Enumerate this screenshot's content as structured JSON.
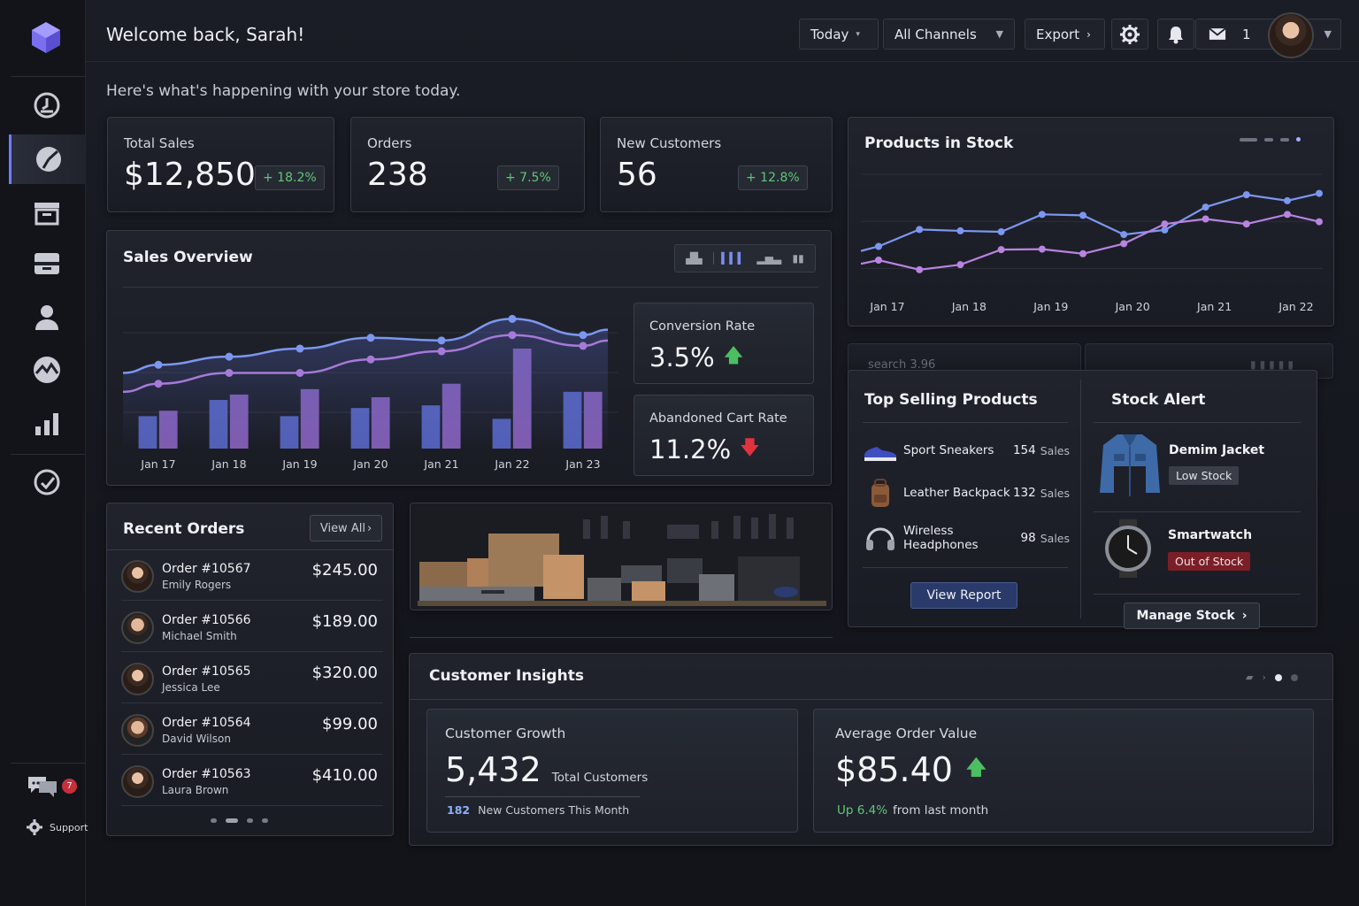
{
  "header": {
    "welcome": "Welcome back, Sarah!",
    "subtitle": "Here's what's happening with your store today.",
    "date_filter": "Today",
    "channel_filter": "All Channels",
    "export_label": "Export",
    "mail_count": "1"
  },
  "sidebar": {
    "items": [
      "dashboard-icon",
      "analytics-icon",
      "archive-icon",
      "inbox-icon",
      "user-icon",
      "activity-icon",
      "bar-chart-icon",
      "target-icon"
    ],
    "active_index": 1,
    "chat_badge": "7",
    "support_label": "Support"
  },
  "kpis": [
    {
      "label": "Total Sales",
      "value": "$12,850",
      "delta": "+ 18.2%"
    },
    {
      "label": "Orders",
      "value": "238",
      "delta": "+ 7.5%"
    },
    {
      "label": "New Customers",
      "value": "56",
      "delta": "+ 12.8%"
    }
  ],
  "sales_overview": {
    "title": "Sales Overview",
    "conversion_label": "Conversion Rate",
    "conversion_value": "3.5%",
    "abandoned_label": "Abandoned Cart Rate",
    "abandoned_value": "11.2%"
  },
  "chart_data": [
    {
      "type": "bar",
      "title": "Sales Overview",
      "categories": [
        "Jan 17",
        "Jan 18",
        "Jan 19",
        "Jan 20",
        "Jan 21",
        "Jan 22",
        "Jan 23"
      ],
      "series": [
        {
          "values": [
            24,
            36,
            24,
            30,
            32,
            22,
            42
          ],
          "color": "#5a68c8"
        },
        {
          "values": [
            28,
            40,
            44,
            38,
            48,
            74,
            42
          ],
          "color": "#8a64c0"
        }
      ],
      "line_series": [
        {
          "values": [
            62,
            68,
            74,
            82,
            80,
            96,
            84
          ],
          "color": "#7c97f0"
        },
        {
          "values": [
            48,
            56,
            56,
            66,
            72,
            84,
            76
          ],
          "color": "#a67ad8"
        }
      ],
      "ylim": [
        0,
        110
      ]
    },
    {
      "type": "line",
      "title": "Products in Stock",
      "categories": [
        "Jan 17",
        "Jan 18",
        "Jan 19",
        "Jan 20",
        "Jan 21",
        "Jan 22"
      ],
      "series": [
        {
          "values": [
            45,
            62,
            80,
            58,
            88,
            95
          ],
          "color": "#7c97f0"
        },
        {
          "values": [
            30,
            25,
            42,
            48,
            75,
            80
          ],
          "color": "#b884e0"
        }
      ],
      "ylim": [
        0,
        120
      ]
    }
  ],
  "recent_orders": {
    "title": "Recent Orders",
    "view_all": "View All",
    "rows": [
      {
        "id": "Order #10567",
        "name": "Emily Rogers",
        "amount": "$245.00"
      },
      {
        "id": "Order #10566",
        "name": "Michael Smith",
        "amount": "$189.00"
      },
      {
        "id": "Order #10565",
        "name": "Jessica Lee",
        "amount": "$320.00"
      },
      {
        "id": "Order #10564",
        "name": "David Wilson",
        "amount": "$99.00"
      },
      {
        "id": "Order #10563",
        "name": "Laura Brown",
        "amount": "$410.00"
      }
    ]
  },
  "top_products": {
    "title": "Top Selling Products",
    "rows": [
      {
        "name": "Sport Sneakers",
        "sales": "154",
        "unit": "Sales"
      },
      {
        "name": "Leather Backpack",
        "sales": "132",
        "unit": "Sales"
      },
      {
        "name": "Wireless Headphones",
        "sales": "98",
        "unit": "Sales"
      }
    ],
    "button": "View Report",
    "faded_tab": "search 3.96"
  },
  "stock_alert": {
    "title": "Stock Alert",
    "items": [
      {
        "name": "Demim Jacket",
        "status": "Low Stock"
      },
      {
        "name": "Smartwatch",
        "status": "Out of Stock"
      }
    ],
    "button": "Manage Stock"
  },
  "stock_chart": {
    "title": "Products in Stock"
  },
  "insights": {
    "title": "Customer Insights",
    "growth_label": "Customer Growth",
    "growth_value": "5,432",
    "growth_unit": "Total Customers",
    "growth_new": "182",
    "growth_new_label": "New Customers This Month",
    "aov_label": "Average Order Value",
    "aov_value": "$85.40",
    "aov_delta": "Up 6.4%",
    "aov_delta_label": "from last month"
  }
}
